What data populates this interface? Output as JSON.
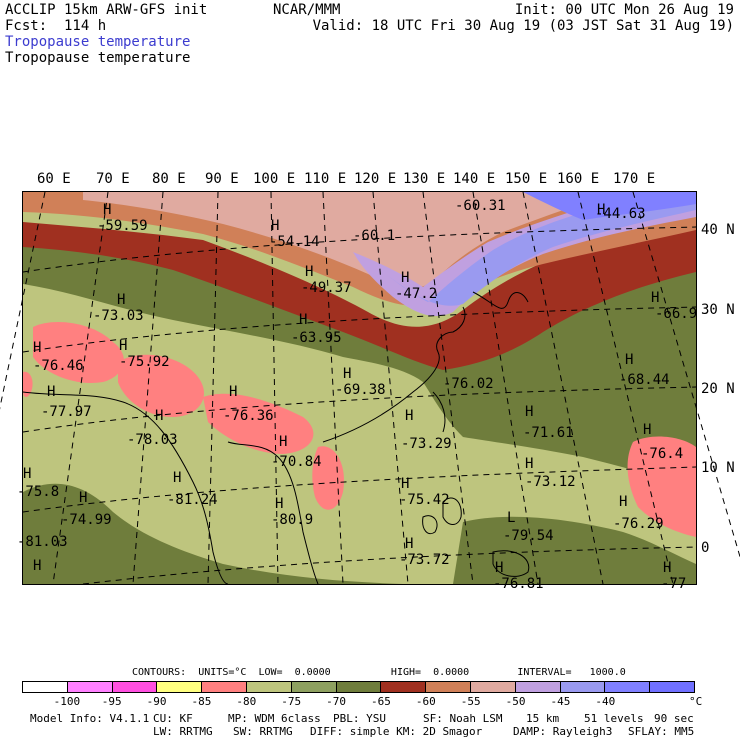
{
  "header": {
    "title_left": "ACCLIP 15km ARW-GFS init",
    "fcst": "Fcst:  114 h",
    "center_source": "NCAR/MMM",
    "init": "Init: 00 UTC Mon 26 Aug 19",
    "valid": "Valid: 18 UTC Fri 30 Aug 19 (03 JST Sat 31 Aug 19)",
    "field_label_blue": "Tropopause temperature",
    "field_label_black": "Tropopause temperature"
  },
  "map": {
    "longitude_labels": [
      "60 E",
      "70 E",
      "80 E",
      "90 E",
      "100 E",
      "110 E",
      "120 E",
      "130 E",
      "140 E",
      "150 E",
      "160 E",
      "170 E"
    ],
    "latitude_labels": [
      "40 N",
      "30 N",
      "20 N",
      "10 N",
      "0"
    ],
    "highs": [
      {
        "marker": "H",
        "value": "-59.59"
      },
      {
        "marker": "H",
        "value": "-54.14"
      },
      {
        "marker": "",
        "value": "-60.1"
      },
      {
        "marker": "",
        "value": "-60.31"
      },
      {
        "marker": "H",
        "value": "-44.63"
      },
      {
        "marker": "H",
        "value": "-49.37"
      },
      {
        "marker": "H",
        "value": "-47.2"
      },
      {
        "marker": "H",
        "value": "-73.03"
      },
      {
        "marker": "H",
        "value": "-63.95"
      },
      {
        "marker": "H",
        "value": "-66.9"
      },
      {
        "marker": "H",
        "value": "-75.92"
      },
      {
        "marker": "H",
        "value": "-76.46"
      },
      {
        "marker": "H",
        "value": "-69.38"
      },
      {
        "marker": "",
        "value": "-76.02"
      },
      {
        "marker": "H",
        "value": "-68.44"
      },
      {
        "marker": "H",
        "value": "-77.97"
      },
      {
        "marker": "H",
        "value": "-76.36"
      },
      {
        "marker": "H",
        "value": "-78.03"
      },
      {
        "marker": "H",
        "value": "-73.29"
      },
      {
        "marker": "H",
        "value": "-71.61"
      },
      {
        "marker": "H",
        "value": "-76.4"
      },
      {
        "marker": "H",
        "value": "-70.84"
      },
      {
        "marker": "H",
        "value": "-73.12"
      },
      {
        "marker": "H",
        "value": "-75.8"
      },
      {
        "marker": "H",
        "value": "-81.24"
      },
      {
        "marker": "H",
        "value": "-75.42"
      },
      {
        "marker": "H",
        "value": "-74.99"
      },
      {
        "marker": "H",
        "value": "-80.9"
      },
      {
        "marker": "L",
        "value": "-79.54"
      },
      {
        "marker": "H",
        "value": "-76.29"
      },
      {
        "marker": "H",
        "value": "-81.03"
      },
      {
        "marker": "H",
        "value": "-73.72"
      },
      {
        "marker": "H",
        "value": "-76.81"
      },
      {
        "marker": "H",
        "value": "-77"
      }
    ]
  },
  "contours": {
    "label": "CONTOURS:",
    "units": "UNITS=°C",
    "low": "LOW=  0.0000",
    "high": "HIGH=  0.0000",
    "interval": "INTERVAL=   1000.0"
  },
  "colorbar": {
    "unit": "°C",
    "colors": [
      "#ffffff",
      "#ff80ff",
      "#ff4fe0",
      "#ffff80",
      "#ff8080",
      "#bec57e",
      "#8ea060",
      "#6f7d3c",
      "#a03020",
      "#d08058",
      "#e0aaa0",
      "#c0a0e0",
      "#9a9af0",
      "#8080ff",
      "#7070ff"
    ],
    "ticks": [
      "-100",
      "-95",
      "-90",
      "-85",
      "-80",
      "-75",
      "-70",
      "-65",
      "-60",
      "-55",
      "-50",
      "-45",
      "-40"
    ]
  },
  "model_info": {
    "line1": [
      "Model Info: V4.1.1",
      "CU: KF",
      "MP: WDM 6class",
      "PBL: YSU",
      "SF: Noah LSM",
      "15 km",
      "51 levels",
      "90 sec"
    ],
    "line2": [
      "LW: RRTMG",
      "SW: RRTMG",
      "DIFF: simple KM: 2D Smagor",
      "DAMP: Rayleigh3",
      "SFLAY: MM5"
    ]
  }
}
